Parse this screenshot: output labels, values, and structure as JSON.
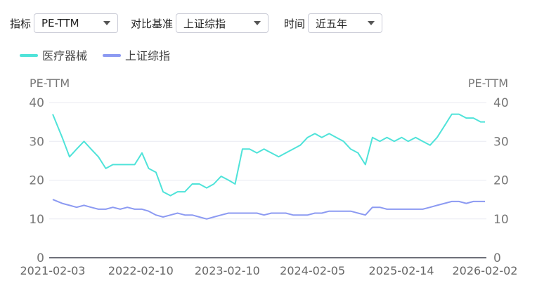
{
  "controls": [
    {
      "label": "指标",
      "value": "PE-TTM"
    },
    {
      "label": "对比基准",
      "value": "上证综指"
    },
    {
      "label": "时间",
      "value": "近五年"
    }
  ],
  "chart_data": {
    "type": "line",
    "ylabel": "PE-TTM",
    "y2label": "PE-TTM",
    "x": [
      "2021-02-03",
      "2021-03-15",
      "2021-04-15",
      "2021-05-15",
      "2021-06-15",
      "2021-07-15",
      "2021-08-15",
      "2021-09-15",
      "2021-10-15",
      "2021-11-15",
      "2021-12-15",
      "2022-01-15",
      "2022-02-15",
      "2022-03-15",
      "2022-04-15",
      "2022-05-15",
      "2022-06-15",
      "2022-07-15",
      "2022-08-15",
      "2022-09-15",
      "2022-10-15",
      "2022-11-15",
      "2022-12-15",
      "2023-01-15",
      "2023-02-15",
      "2023-03-15",
      "2023-04-15",
      "2023-05-15",
      "2023-06-15",
      "2023-07-15",
      "2023-08-15",
      "2023-09-15",
      "2023-10-15",
      "2023-11-15",
      "2023-12-15",
      "2024-01-15",
      "2024-02-15",
      "2024-03-15",
      "2024-04-15",
      "2024-05-15",
      "2024-06-15",
      "2024-07-15",
      "2024-08-15",
      "2024-09-15",
      "2024-10-15",
      "2024-11-15",
      "2024-12-15",
      "2025-01-15",
      "2025-02-15",
      "2025-03-15",
      "2025-04-15",
      "2025-05-15",
      "2025-06-15",
      "2025-07-15",
      "2025-08-15",
      "2025-09-15",
      "2025-10-15",
      "2025-11-15",
      "2025-12-15",
      "2026-01-15",
      "2026-02-02"
    ],
    "series": [
      {
        "name": "医疗器械",
        "color": "#4fe3d9",
        "values": [
          37,
          31,
          26,
          28,
          30,
          28,
          26,
          23,
          24,
          24,
          24,
          24,
          27,
          23,
          22,
          17,
          16,
          17,
          17,
          19,
          19,
          18,
          19,
          21,
          20,
          19,
          28,
          28,
          27,
          28,
          27,
          26,
          27,
          28,
          29,
          31,
          32,
          31,
          32,
          31,
          30,
          28,
          27,
          24,
          31,
          30,
          31,
          30,
          31,
          30,
          31,
          30,
          29,
          31,
          34,
          37,
          37,
          36,
          36,
          35,
          35
        ]
      },
      {
        "name": "上证综指",
        "color": "#8c9af2",
        "values": [
          15,
          14,
          13.5,
          13,
          13.5,
          13,
          12.5,
          12.5,
          13,
          12.5,
          13,
          12.5,
          12.5,
          12,
          11,
          10.5,
          11,
          11.5,
          11,
          11,
          10.5,
          10,
          10.5,
          11,
          11.5,
          11.5,
          11.5,
          11.5,
          11.5,
          11,
          11.5,
          11.5,
          11.5,
          11,
          11,
          11,
          11.5,
          11.5,
          12,
          12,
          12,
          12,
          11.5,
          11,
          13,
          13,
          12.5,
          12.5,
          12.5,
          12.5,
          12.5,
          12.5,
          13,
          13.5,
          14,
          14.5,
          14.5,
          14,
          14.5,
          14.5,
          14.5
        ]
      }
    ],
    "xlim": [
      "2021-02-03",
      "2026-02-02"
    ],
    "xticks": [
      "2021-02-03",
      "2022-02-10",
      "2023-02-10",
      "2024-02-05",
      "2025-02-14",
      "2026-02-02"
    ],
    "ylim": [
      0,
      40
    ],
    "yticks": [
      0,
      10,
      20,
      30,
      40
    ],
    "grid": true
  }
}
